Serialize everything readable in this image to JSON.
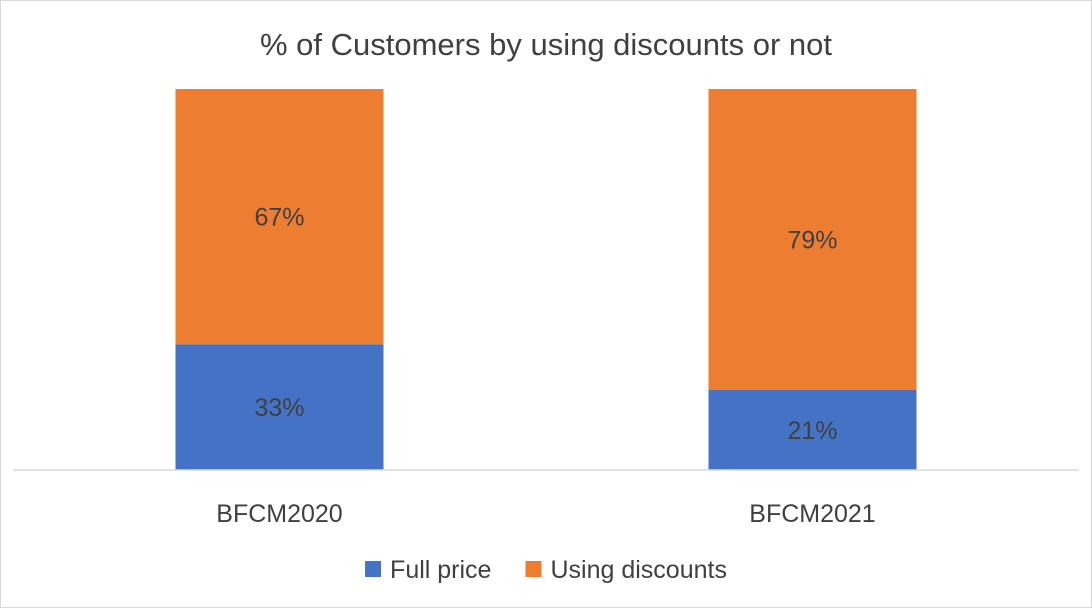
{
  "chart_data": {
    "type": "bar",
    "stacked": true,
    "title": "% of Customers by using discounts or not",
    "categories": [
      "BFCM2020",
      "BFCM2021"
    ],
    "series": [
      {
        "name": "Full price",
        "values": [
          33,
          21
        ],
        "labels": [
          "33%",
          "21%"
        ],
        "color": "#4472C4"
      },
      {
        "name": "Using discounts",
        "values": [
          67,
          79
        ],
        "labels": [
          "67%",
          "79%"
        ],
        "color": "#ED7D31"
      }
    ],
    "ylim": [
      0,
      100
    ],
    "grid": false,
    "legend_position": "bottom",
    "xlabel": "",
    "ylabel": ""
  }
}
